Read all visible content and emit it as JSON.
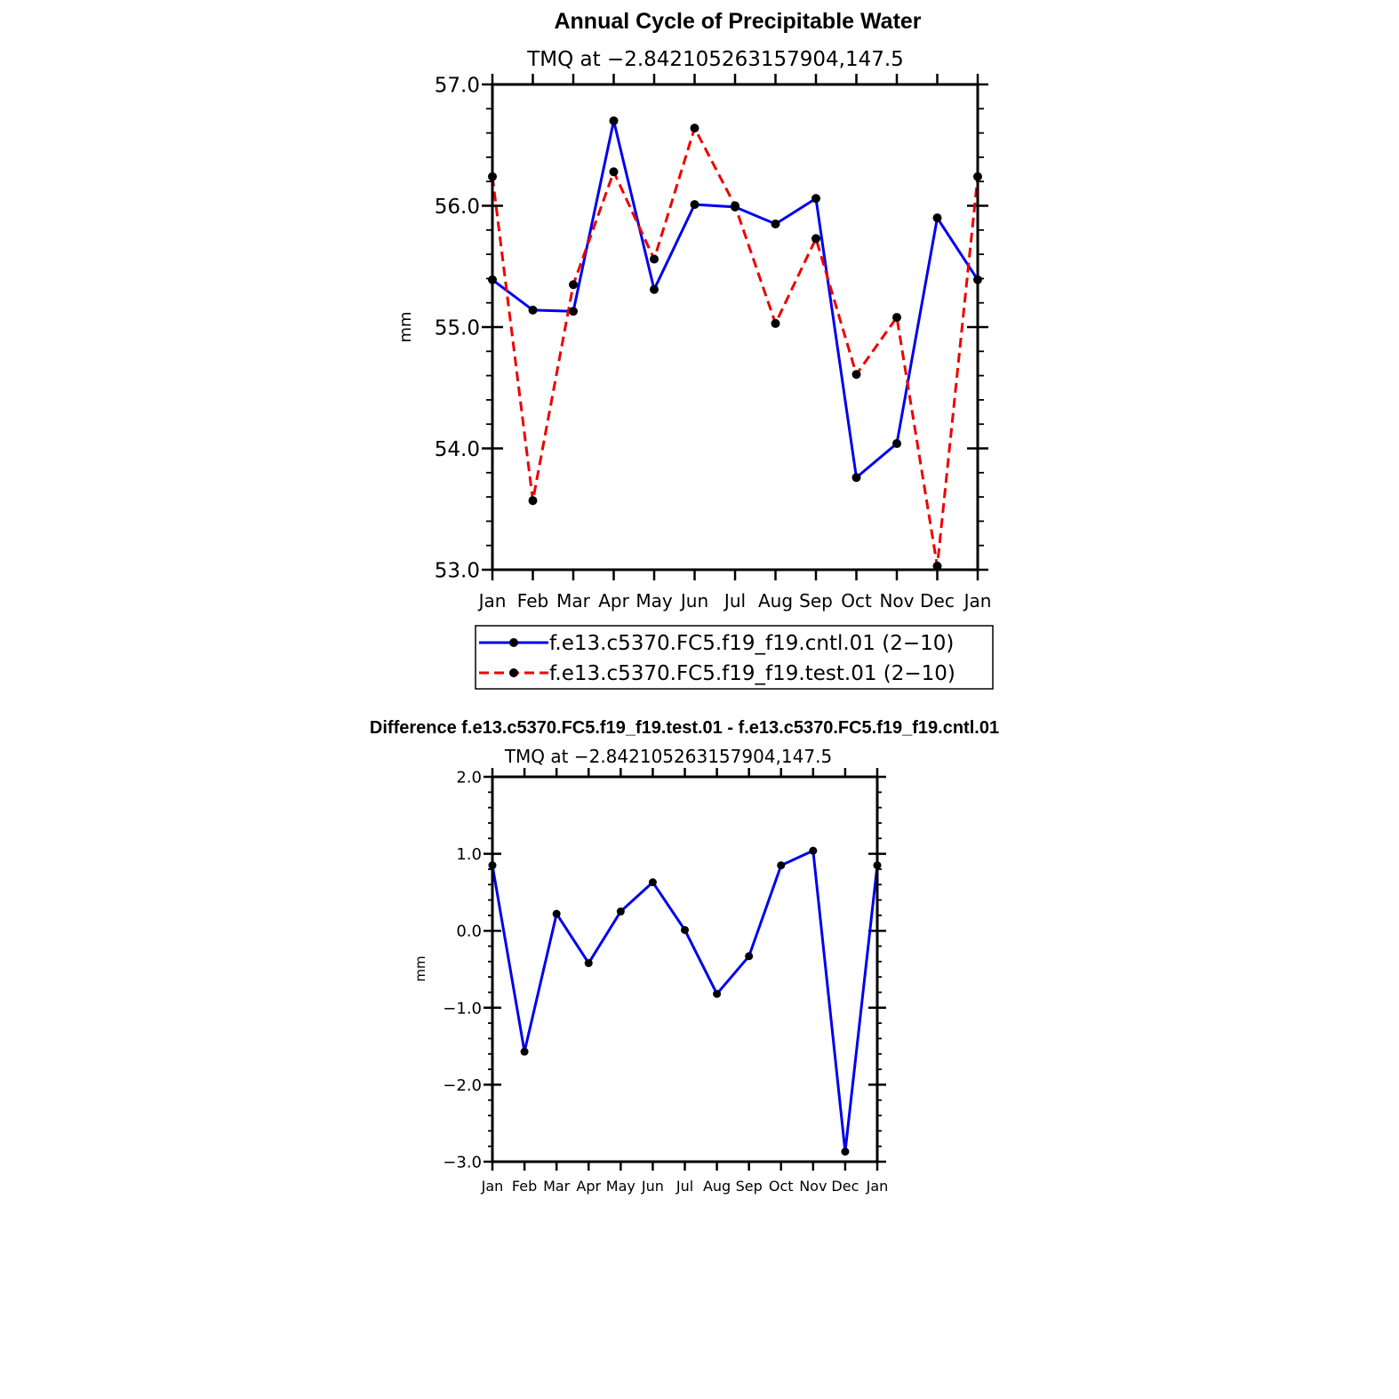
{
  "chart_data": [
    {
      "type": "line",
      "title": "Annual Cycle of Precipitable Water",
      "subtitle": "TMQ  at  −2.842105263157904,147.5",
      "ylabel": "mm",
      "ylim": [
        53.0,
        57.0
      ],
      "yticks": [
        "53.0",
        "54.0",
        "55.0",
        "56.0",
        "57.0"
      ],
      "categories": [
        "Jan",
        "Feb",
        "Mar",
        "Apr",
        "May",
        "Jun",
        "Jul",
        "Aug",
        "Sep",
        "Oct",
        "Nov",
        "Dec",
        "Jan"
      ],
      "series": [
        {
          "name": "f.e13.c5370.FC5.f19_f19.cntl.01  (2−10)",
          "color": "#0000ee",
          "dash": "solid",
          "values": [
            55.39,
            55.14,
            55.13,
            56.7,
            55.31,
            56.01,
            55.99,
            55.85,
            56.06,
            53.76,
            54.04,
            55.9,
            55.39
          ]
        },
        {
          "name": "f.e13.c5370.FC5.f19_f19.test.01  (2−10)",
          "color": "#ee0000",
          "dash": "dashed",
          "values": [
            56.24,
            53.57,
            55.35,
            56.28,
            55.56,
            56.64,
            56.0,
            55.03,
            55.73,
            54.61,
            55.08,
            53.03,
            56.24
          ]
        }
      ],
      "legend": "bottom"
    },
    {
      "type": "line",
      "title": "Difference f.e13.c5370.FC5.f19_f19.test.01 - f.e13.c5370.FC5.f19_f19.cntl.01",
      "subtitle": "TMQ  at  −2.842105263157904,147.5",
      "ylabel": "mm",
      "ylim": [
        -3.0,
        2.0
      ],
      "yticks": [
        "−3.0",
        "−2.0",
        "−1.0",
        "0.0",
        "1.0",
        "2.0"
      ],
      "categories": [
        "Jan",
        "Feb",
        "Mar",
        "Apr",
        "May",
        "Jun",
        "Jul",
        "Aug",
        "Sep",
        "Oct",
        "Nov",
        "Dec",
        "Jan"
      ],
      "series": [
        {
          "color": "#0000ee",
          "dash": "solid",
          "values": [
            0.85,
            -1.57,
            0.22,
            -0.42,
            0.25,
            0.63,
            0.01,
            -0.82,
            -0.33,
            0.85,
            1.04,
            -2.87,
            0.85
          ]
        }
      ]
    }
  ]
}
